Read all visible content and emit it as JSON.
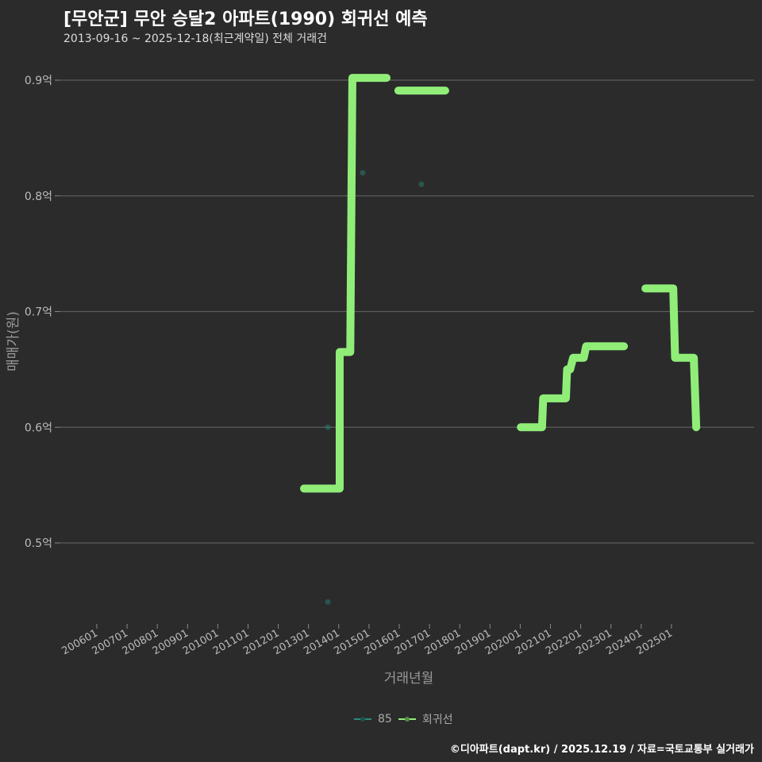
{
  "chart_data": {
    "type": "line",
    "title": "[무안군] 무안 승달2 아파트(1990) 회귀선 예측",
    "subtitle": "2013-09-16 ~ 2025-12-18(최근계약일) 전체 거래건",
    "xlabel": "거래년월",
    "ylabel": "매매가(원)",
    "ylim": [
      0.43,
      0.93
    ],
    "xlim": [
      2004.8,
      2028.8
    ],
    "y_ticks": [
      {
        "v": 0.9,
        "label": "0.9억"
      },
      {
        "v": 0.8,
        "label": "0.8억"
      },
      {
        "v": 0.7,
        "label": "0.7억"
      },
      {
        "v": 0.6,
        "label": "0.6억"
      },
      {
        "v": 0.5,
        "label": "0.5억"
      }
    ],
    "x_ticks": [
      {
        "v": 2006,
        "label": "200601"
      },
      {
        "v": 2007,
        "label": "200701"
      },
      {
        "v": 2008,
        "label": "200801"
      },
      {
        "v": 2009,
        "label": "200901"
      },
      {
        "v": 2010,
        "label": "201001"
      },
      {
        "v": 2011,
        "label": "201101"
      },
      {
        "v": 2012,
        "label": "201201"
      },
      {
        "v": 2013,
        "label": "201301"
      },
      {
        "v": 2014,
        "label": "201401"
      },
      {
        "v": 2015,
        "label": "201501"
      },
      {
        "v": 2016,
        "label": "201601"
      },
      {
        "v": 2017,
        "label": "201701"
      },
      {
        "v": 2018,
        "label": "201801"
      },
      {
        "v": 2019,
        "label": "201901"
      },
      {
        "v": 2020,
        "label": "202001"
      },
      {
        "v": 2021,
        "label": "202101"
      },
      {
        "v": 2022,
        "label": "202201"
      },
      {
        "v": 2023,
        "label": "202301"
      },
      {
        "v": 2024,
        "label": "202401"
      },
      {
        "v": 2025,
        "label": "202501"
      }
    ],
    "series": [
      {
        "name": "85",
        "type": "scatter",
        "color": "#2a8a7a",
        "points": [
          [
            2013.64,
            0.6
          ],
          [
            2013.64,
            0.449
          ],
          [
            2014.79,
            0.82
          ],
          [
            2016.73,
            0.81
          ]
        ]
      },
      {
        "name": "회귀선",
        "type": "line",
        "color": "#90ee78",
        "segments": [
          [
            [
              2012.85,
              0.547
            ],
            [
              2014.03,
              0.547
            ],
            [
              2014.03,
              0.665
            ],
            [
              2014.38,
              0.665
            ],
            [
              2014.45,
              0.902
            ],
            [
              2015.58,
              0.902
            ]
          ],
          [
            [
              2015.97,
              0.891
            ],
            [
              2017.52,
              0.891
            ]
          ],
          [
            [
              2020.02,
              0.6
            ],
            [
              2020.72,
              0.6
            ],
            [
              2020.76,
              0.625
            ],
            [
              2021.51,
              0.625
            ],
            [
              2021.55,
              0.65
            ],
            [
              2021.65,
              0.65
            ],
            [
              2021.75,
              0.66
            ],
            [
              2022.1,
              0.66
            ],
            [
              2022.18,
              0.67
            ],
            [
              2023.43,
              0.67
            ]
          ],
          [
            [
              2024.14,
              0.72
            ],
            [
              2025.06,
              0.72
            ],
            [
              2025.12,
              0.66
            ],
            [
              2025.74,
              0.66
            ],
            [
              2025.82,
              0.6
            ]
          ]
        ]
      }
    ],
    "legend": "bottom"
  },
  "footer": "©디아파트(dapt.kr) / 2025.12.19 / 자료=국토교통부 실거래가"
}
